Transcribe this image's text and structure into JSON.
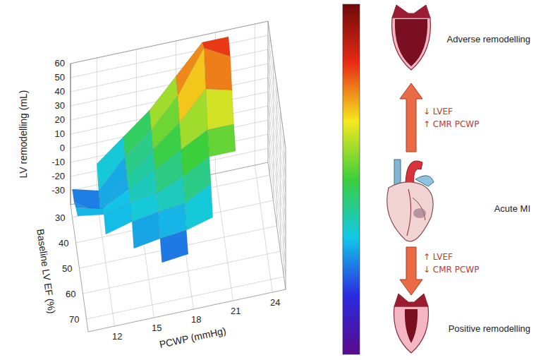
{
  "chart_data": {
    "type": "surface3d",
    "xlabel": "PCWP (mmHg)",
    "ylabel": "Baseline LV EF (%)",
    "zlabel": "LV remodelling (mL)",
    "xlim": [
      10,
      25
    ],
    "xticks": [
      12,
      15,
      18,
      21,
      24
    ],
    "ylim": [
      25,
      75
    ],
    "yticks": [
      30,
      40,
      50,
      60,
      70
    ],
    "zlim": [
      -40,
      60
    ],
    "zticks": [
      -30,
      -20,
      -10,
      0,
      10,
      20,
      30,
      40,
      50,
      60
    ],
    "grid": true,
    "x": [
      10,
      12,
      14,
      16,
      18,
      20,
      22
    ],
    "y": [
      25,
      30,
      35,
      40,
      45,
      50,
      55,
      60
    ],
    "z": [
      [
        null,
        -15,
        0,
        15,
        35,
        55,
        55
      ],
      [
        -20,
        -25,
        -5,
        10,
        30,
        60,
        50
      ],
      [
        -20,
        -32,
        -10,
        5,
        20,
        40,
        35
      ],
      [
        -15,
        -20,
        -10,
        0,
        10,
        20,
        20
      ],
      [
        -12,
        -15,
        -10,
        -8,
        0,
        10,
        10
      ],
      [
        null,
        -20,
        -15,
        -12,
        -10,
        0,
        null
      ],
      [
        null,
        null,
        -25,
        -22,
        -20,
        -15,
        null
      ],
      [
        null,
        null,
        null,
        -30,
        -28,
        null,
        null
      ]
    ],
    "colorbar": {
      "range": [
        -60,
        80
      ],
      "colors": [
        "#5b0a8c",
        "#2a2ae0",
        "#12c8e8",
        "#3ccf3c",
        "#f5e81e",
        "#e82a14",
        "#6e0a0a"
      ]
    }
  },
  "diagram": {
    "top": {
      "label": "Adverse remodelling"
    },
    "up_arrow": {
      "labels": [
        "↓ LVEF",
        "↑ CMR PCWP"
      ]
    },
    "middle": {
      "label": "Acute MI"
    },
    "down_arrow": {
      "labels": [
        "↑ LVEF",
        "↓ CMR PCWP"
      ]
    },
    "bottom": {
      "label": "Positive remodelling"
    }
  }
}
